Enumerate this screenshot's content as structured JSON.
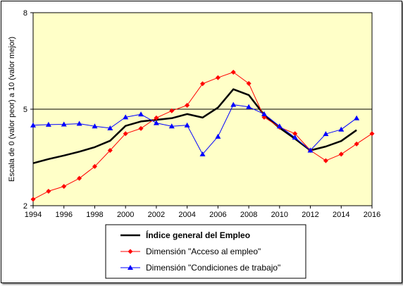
{
  "chart_data": {
    "type": "line",
    "title": "",
    "xlabel": "",
    "ylabel": "Escala de 0 (valor peor) a 10 (valor mejor)",
    "xlim": [
      1994,
      2016
    ],
    "ylim": [
      2,
      8
    ],
    "x_ticks": [
      "1994",
      "1996",
      "1998",
      "2000",
      "2002",
      "2004",
      "2006",
      "2008",
      "2010",
      "2012",
      "2014",
      "2016"
    ],
    "y_ticks": [
      "2",
      "5",
      "8"
    ],
    "reference_line": 5,
    "plot_background": "#ffffc8",
    "legend_position": "bottom",
    "series": [
      {
        "name": "Índice general del Empleo",
        "color": "#000000",
        "marker": "none",
        "x": [
          1994,
          1995,
          1996,
          1997,
          1998,
          1999,
          2000,
          2001,
          2002,
          2003,
          2004,
          2005,
          2006,
          2007,
          2008,
          2009,
          2010,
          2011,
          2012,
          2013,
          2014,
          2015
        ],
        "values": [
          3.32,
          3.45,
          3.56,
          3.68,
          3.82,
          4.02,
          4.48,
          4.62,
          4.67,
          4.72,
          4.85,
          4.74,
          5.05,
          5.62,
          5.44,
          4.82,
          4.42,
          4.08,
          3.72,
          3.84,
          4.01,
          4.35
        ]
      },
      {
        "name": "Dimensión \"Acceso al empleo\"",
        "color": "#ff0000",
        "marker": "diamond",
        "x": [
          1994,
          1995,
          1996,
          1997,
          1998,
          1999,
          2000,
          2001,
          2002,
          2003,
          2004,
          2005,
          2006,
          2007,
          2008,
          2009,
          2010,
          2011,
          2012,
          2013,
          2014,
          2015,
          2016
        ],
        "values": [
          2.2,
          2.45,
          2.6,
          2.85,
          3.22,
          3.72,
          4.24,
          4.4,
          4.73,
          4.95,
          5.12,
          5.79,
          5.98,
          6.15,
          5.8,
          4.75,
          4.44,
          4.24,
          3.72,
          3.4,
          3.6,
          3.92,
          4.24
        ]
      },
      {
        "name": "Dimensión \"Condiciones de trabajo\"",
        "color": "#0000ff",
        "marker": "triangle",
        "x": [
          1994,
          1995,
          1996,
          1997,
          1998,
          1999,
          2000,
          2001,
          2002,
          2003,
          2004,
          2005,
          2006,
          2007,
          2008,
          2009,
          2010,
          2011,
          2012,
          2013,
          2014,
          2015
        ],
        "values": [
          4.5,
          4.52,
          4.53,
          4.55,
          4.47,
          4.41,
          4.75,
          4.84,
          4.57,
          4.47,
          4.5,
          3.6,
          4.15,
          5.14,
          5.07,
          4.85,
          4.47,
          4.12,
          3.72,
          4.23,
          4.37,
          4.72
        ]
      }
    ]
  }
}
